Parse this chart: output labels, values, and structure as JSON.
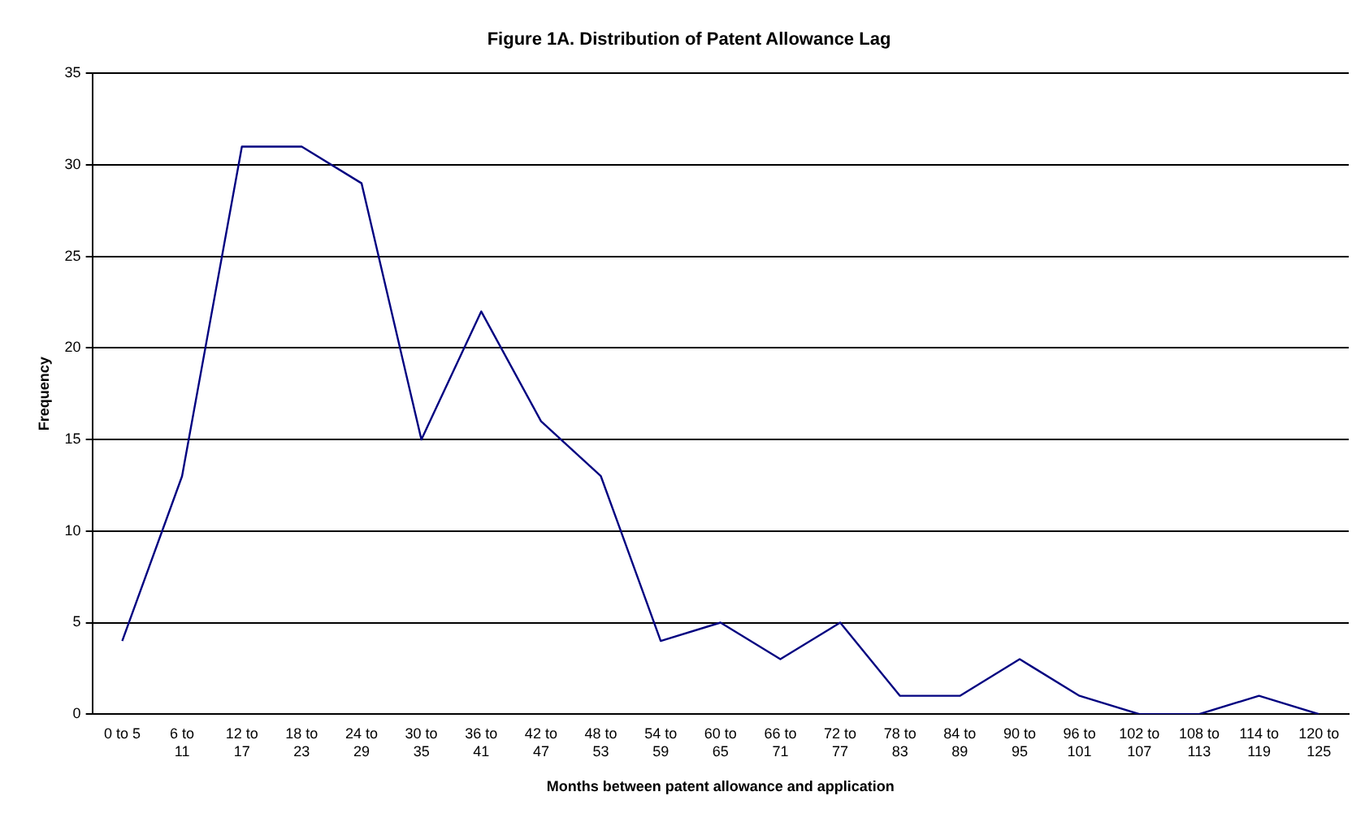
{
  "chart_data": {
    "type": "line",
    "title": "Figure 1A. Distribution of Patent Allowance Lag",
    "xlabel": "Months between patent allowance and application",
    "ylabel": "Frequency",
    "categories": [
      "0 to 5",
      "6 to 11",
      "12 to 17",
      "18 to 23",
      "24 to 29",
      "30 to 35",
      "36 to 41",
      "42 to 47",
      "48 to 53",
      "54 to 59",
      "60 to 65",
      "66 to 71",
      "72 to 77",
      "78 to 83",
      "84 to 89",
      "90 to 95",
      "96 to 101",
      "102 to 107",
      "108 to 113",
      "114 to 119",
      "120 to 125"
    ],
    "series": [
      {
        "color": "#000080",
        "values": [
          4,
          13,
          31,
          31,
          29,
          15,
          22,
          16,
          13,
          4,
          5,
          3,
          5,
          1,
          1,
          3,
          1,
          0,
          0,
          1,
          0
        ]
      }
    ],
    "ylim": [
      0,
      35
    ],
    "yticks": [
      0,
      5,
      10,
      15,
      20,
      25,
      30,
      35
    ],
    "grid": "y",
    "legend": false,
    "marker": "none",
    "line_style": "solid"
  }
}
